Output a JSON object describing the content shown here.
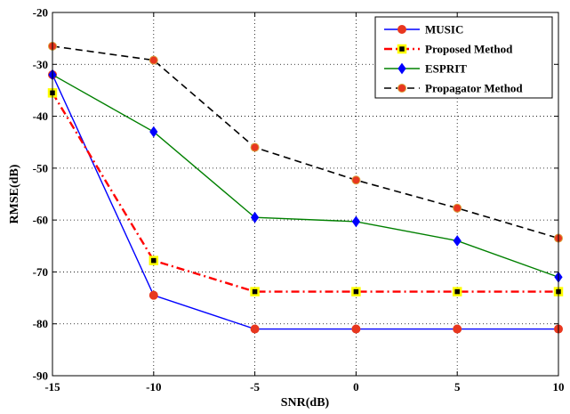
{
  "chart_data": {
    "type": "line",
    "title": "",
    "xlabel": "SNR(dB)",
    "ylabel": "RMSE(dB)",
    "x": [
      -15,
      -10,
      -5,
      0,
      5,
      10
    ],
    "xlim": [
      -15,
      10
    ],
    "ylim": [
      -90,
      -20
    ],
    "xticks": [
      -15,
      -10,
      -5,
      0,
      5,
      10
    ],
    "yticks": [
      -90,
      -80,
      -70,
      -60,
      -50,
      -40,
      -30,
      -20
    ],
    "grid": true,
    "legend_position": "top-right",
    "series": [
      {
        "name": "MUSIC",
        "values": [
          -32,
          -74.5,
          -81,
          -81,
          -81,
          -81
        ],
        "color": "#0000ff",
        "line": "solid",
        "marker": "circle",
        "marker_face": "#e8371f",
        "marker_edge": "#e8371f"
      },
      {
        "name": "Proposed Method",
        "values": [
          -35.5,
          -67.8,
          -73.8,
          -73.8,
          -73.8,
          -73.8
        ],
        "color": "#ff0000",
        "line": "dashdot",
        "marker": "square",
        "marker_face": "#000000",
        "marker_edge": "#ffff00"
      },
      {
        "name": "ESPRIT",
        "values": [
          -32,
          -43,
          -59.5,
          -60.3,
          -64,
          -71
        ],
        "color": "#008000",
        "line": "solid",
        "marker": "diamond",
        "marker_face": "#0000ff",
        "marker_edge": "#0000ff"
      },
      {
        "name": "Propagator Method",
        "values": [
          -26.5,
          -29.2,
          -46,
          -52.3,
          -57.7,
          -63.5
        ],
        "color": "#000000",
        "line": "dashed",
        "marker": "circle",
        "marker_face": "#e8371f",
        "marker_edge": "#d9a441"
      }
    ]
  }
}
